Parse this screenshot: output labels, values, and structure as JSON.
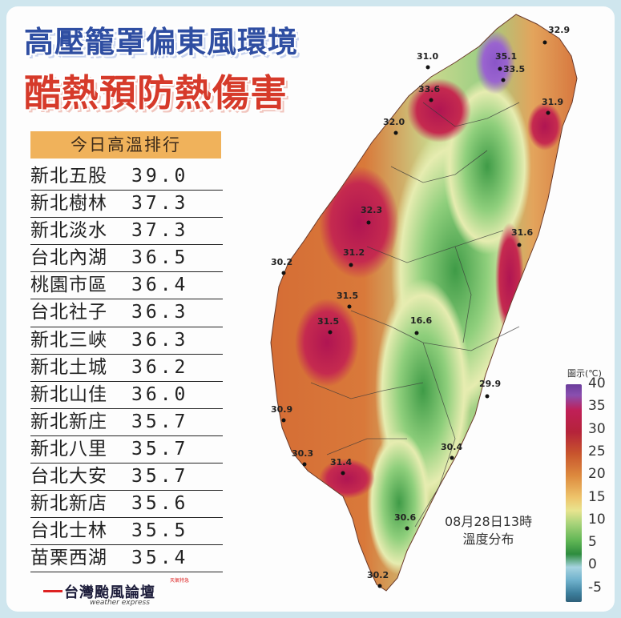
{
  "title": {
    "line1": "高壓籠罩偏東風環境",
    "line2": "酷熱預防熱傷害"
  },
  "ranking": {
    "header": "今日高溫排行",
    "rows": [
      {
        "name": "新北五股",
        "value": "39.0"
      },
      {
        "name": "新北樹林",
        "value": "37.3"
      },
      {
        "name": "新北淡水",
        "value": "37.3"
      },
      {
        "name": "台北內湖",
        "value": "36.5"
      },
      {
        "name": "桃園市區",
        "value": "36.4"
      },
      {
        "name": "台北社子",
        "value": "36.3"
      },
      {
        "name": "新北三峽",
        "value": "36.3"
      },
      {
        "name": "新北土城",
        "value": "36.2"
      },
      {
        "name": "新北山佳",
        "value": "36.0"
      },
      {
        "name": "新北新庄",
        "value": "35.7"
      },
      {
        "name": "新北八里",
        "value": "35.7"
      },
      {
        "name": "台北大安",
        "value": "35.7"
      },
      {
        "name": "新北新店",
        "value": "35.6"
      },
      {
        "name": "台北士林",
        "value": "35.5"
      },
      {
        "name": "苗栗西湖",
        "value": "35.4"
      }
    ]
  },
  "map": {
    "stations": [
      {
        "label": "32.9"
      },
      {
        "label": "31.0"
      },
      {
        "label": "35.1"
      },
      {
        "label": "33.5"
      },
      {
        "label": "33.6"
      },
      {
        "label": "31.9"
      },
      {
        "label": "32.0"
      },
      {
        "label": "32.3"
      },
      {
        "label": "31.6"
      },
      {
        "label": "30.2"
      },
      {
        "label": "31.2"
      },
      {
        "label": "31.5"
      },
      {
        "label": "16.6"
      },
      {
        "label": "31.5"
      },
      {
        "label": "29.9"
      },
      {
        "label": "30.9"
      },
      {
        "label": "30.4"
      },
      {
        "label": "30.3"
      },
      {
        "label": "31.4"
      },
      {
        "label": "30.6"
      },
      {
        "label": "30.2"
      }
    ]
  },
  "legend": {
    "title": "圖示(℃)",
    "ticks": [
      "40",
      "35",
      "30",
      "25",
      "20",
      "15",
      "10",
      "5",
      "0",
      "-5"
    ]
  },
  "date": {
    "line1": "08月28日13時",
    "line2": "溫度分布"
  },
  "logo": {
    "name": "台灣颱風論壇",
    "subtitle": "weather express",
    "tag": "天氣特急"
  }
}
